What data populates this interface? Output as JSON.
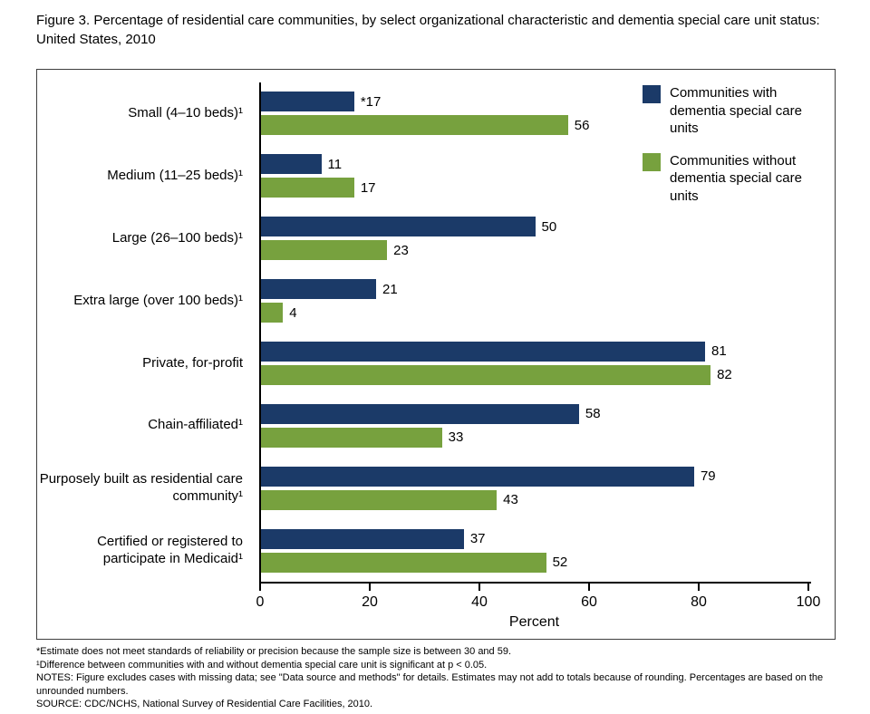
{
  "title": "Figure 3. Percentage of residential care communities, by select organizational characteristic and dementia special care unit status: United States, 2010",
  "chart_data": {
    "type": "bar",
    "orientation": "horizontal",
    "title": "Figure 3. Percentage of residential care communities, by select organizational characteristic and dementia special care unit status: United States, 2010",
    "categories": [
      "Small (4–10 beds)¹",
      "Medium (11–25 beds)¹",
      "Large (26–100 beds)¹",
      "Extra large (over 100 beds)¹",
      "Private, for-profit",
      "Chain-affiliated¹",
      "Purposely built as residential care community¹",
      "Certified or registered to participate in Medicaid¹"
    ],
    "series": [
      {
        "name": "Communities with dementia special care units",
        "color": "#1b3a68",
        "values": [
          17,
          11,
          50,
          21,
          81,
          58,
          79,
          37
        ],
        "labels": [
          "*17",
          "11",
          "50",
          "21",
          "81",
          "58",
          "79",
          "37"
        ]
      },
      {
        "name": "Communities without dementia special care units",
        "color": "#77a13e",
        "values": [
          56,
          17,
          23,
          4,
          82,
          33,
          43,
          52
        ],
        "labels": [
          "56",
          "17",
          "23",
          "4",
          "82",
          "33",
          "43",
          "52"
        ]
      }
    ],
    "xlabel": "Percent",
    "xlim": [
      0,
      100
    ],
    "xticks": [
      0,
      20,
      40,
      60,
      80,
      100
    ],
    "grid": false,
    "legend_position": "top-right"
  },
  "footnotes": [
    "*Estimate does not meet standards of reliability or precision because the sample size is between 30 and 59.",
    "¹Difference between communities with and without dementia special care unit is significant at p < 0.05.",
    "NOTES: Figure excludes cases with missing data; see \"Data source and methods\" for details. Estimates may not add to totals because of rounding. Percentages are based on the unrounded numbers.",
    "SOURCE: CDC/NCHS, National Survey of Residential Care Facilities, 2010."
  ]
}
